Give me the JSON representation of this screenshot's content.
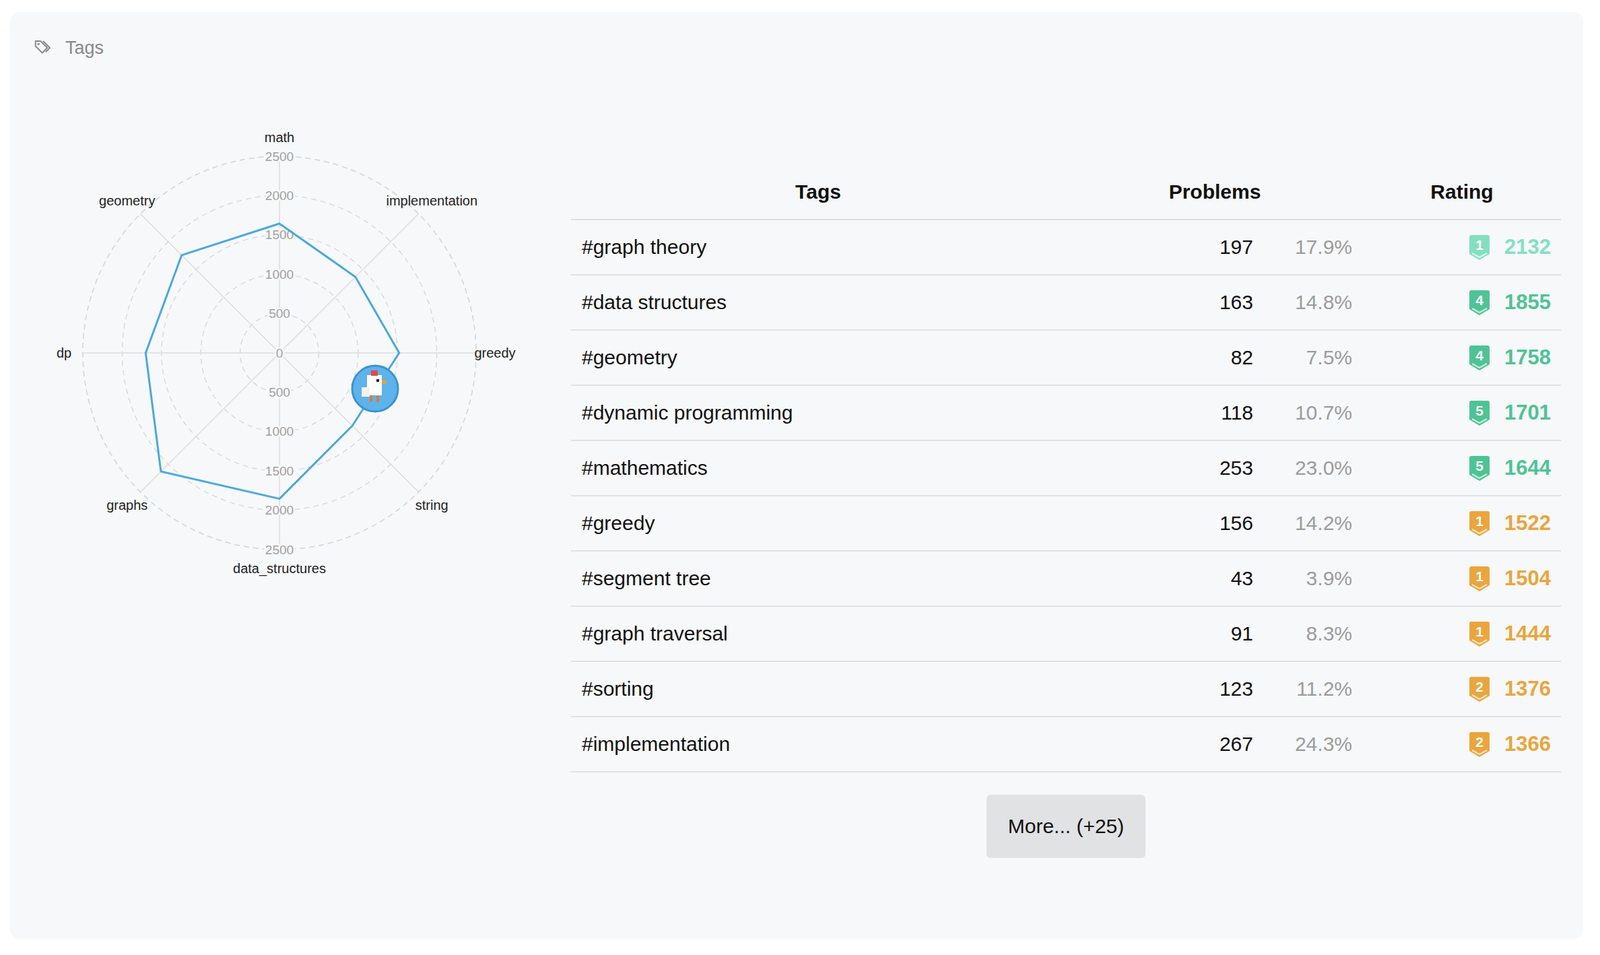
{
  "header": {
    "title": "Tags"
  },
  "chart_data": {
    "type": "radar",
    "categories": [
      "math",
      "implementation",
      "greedy",
      "string",
      "data_structures",
      "graphs",
      "dp",
      "geometry"
    ],
    "values": [
      1644,
      1366,
      1522,
      1310,
      1855,
      2132,
      1701,
      1758
    ],
    "ylim": [
      0,
      2500
    ],
    "yticks": [
      0,
      500,
      1000,
      1500,
      2000,
      2500
    ],
    "grid": true,
    "color": "#4aa8e0"
  },
  "table": {
    "columns": [
      "Tags",
      "Problems",
      "Rating"
    ],
    "rows": [
      {
        "tag": "#graph theory",
        "problems": 197,
        "percent": "17.9%",
        "tier": "1",
        "rating": 2132,
        "color": "#84dfc1"
      },
      {
        "tag": "#data structures",
        "problems": 163,
        "percent": "14.8%",
        "tier": "4",
        "rating": 1855,
        "color": "#4fc394"
      },
      {
        "tag": "#geometry",
        "problems": 82,
        "percent": "7.5%",
        "tier": "4",
        "rating": 1758,
        "color": "#4fc394"
      },
      {
        "tag": "#dynamic programming",
        "problems": 118,
        "percent": "10.7%",
        "tier": "5",
        "rating": 1701,
        "color": "#4fc394"
      },
      {
        "tag": "#mathematics",
        "problems": 253,
        "percent": "23.0%",
        "tier": "5",
        "rating": 1644,
        "color": "#4fc394"
      },
      {
        "tag": "#greedy",
        "problems": 156,
        "percent": "14.2%",
        "tier": "1",
        "rating": 1522,
        "color": "#eaa53e"
      },
      {
        "tag": "#segment tree",
        "problems": 43,
        "percent": "3.9%",
        "tier": "1",
        "rating": 1504,
        "color": "#eaa53e"
      },
      {
        "tag": "#graph traversal",
        "problems": 91,
        "percent": "8.3%",
        "tier": "1",
        "rating": 1444,
        "color": "#eaa53e"
      },
      {
        "tag": "#sorting",
        "problems": 123,
        "percent": "11.2%",
        "tier": "2",
        "rating": 1376,
        "color": "#eaa53e"
      },
      {
        "tag": "#implementation",
        "problems": 267,
        "percent": "24.3%",
        "tier": "2",
        "rating": 1366,
        "color": "#eaa53e"
      }
    ]
  },
  "more_button": "More... (+25)"
}
